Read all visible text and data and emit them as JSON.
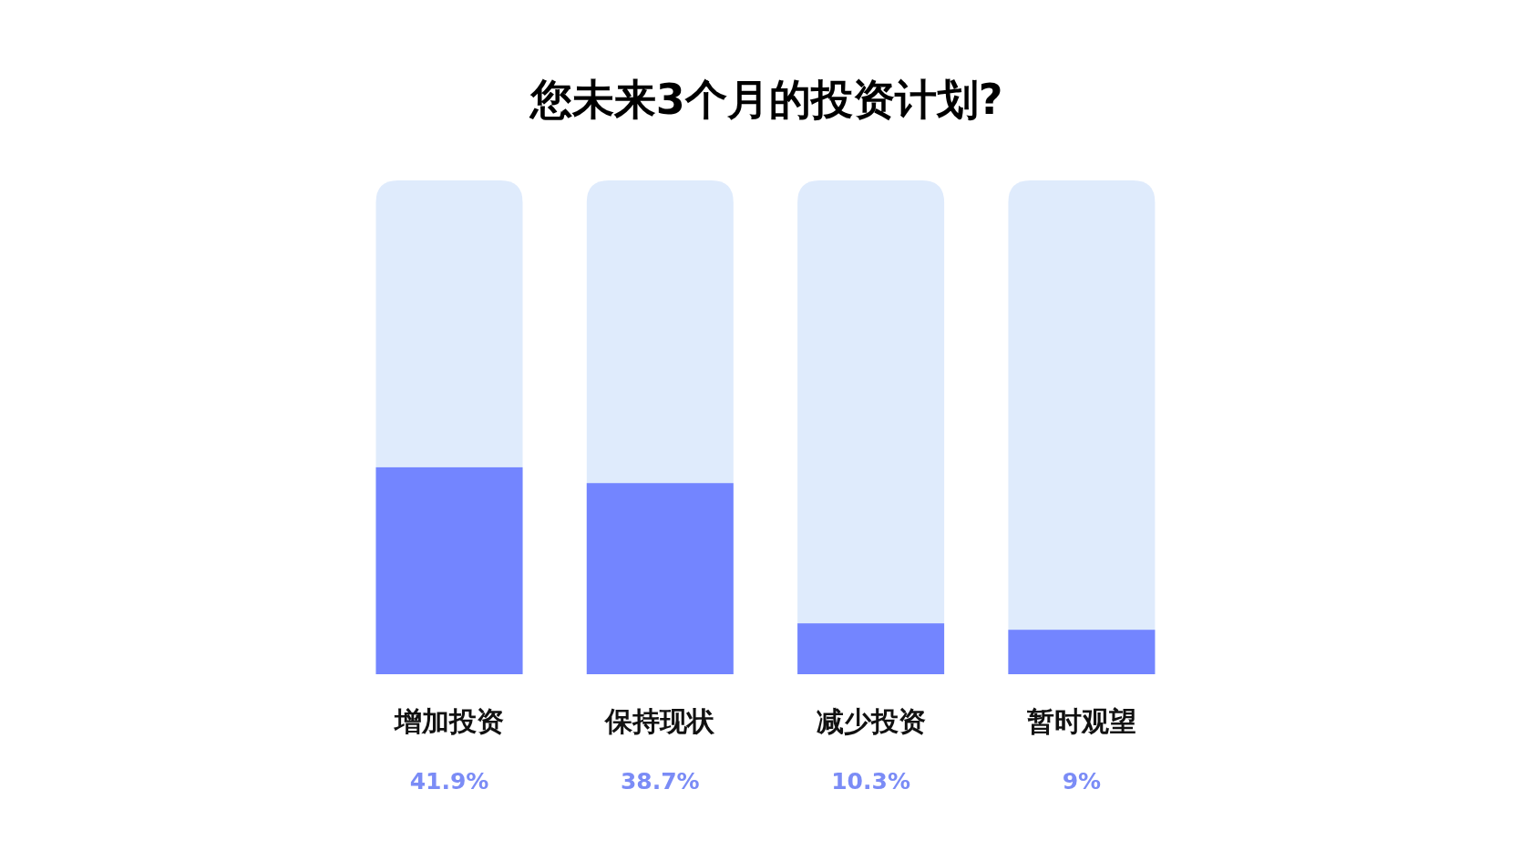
{
  "chart_data": {
    "type": "bar",
    "title": "您未来3个月的投资计划?",
    "categories": [
      "增加投资",
      "保持现状",
      "减少投资",
      "暂时观望"
    ],
    "values": [
      41.9,
      38.7,
      10.3,
      9
    ],
    "value_labels": [
      "41.9%",
      "38.7%",
      "10.3%",
      "9%"
    ],
    "color": "#7385ff",
    "ylim": [
      0,
      100
    ]
  }
}
